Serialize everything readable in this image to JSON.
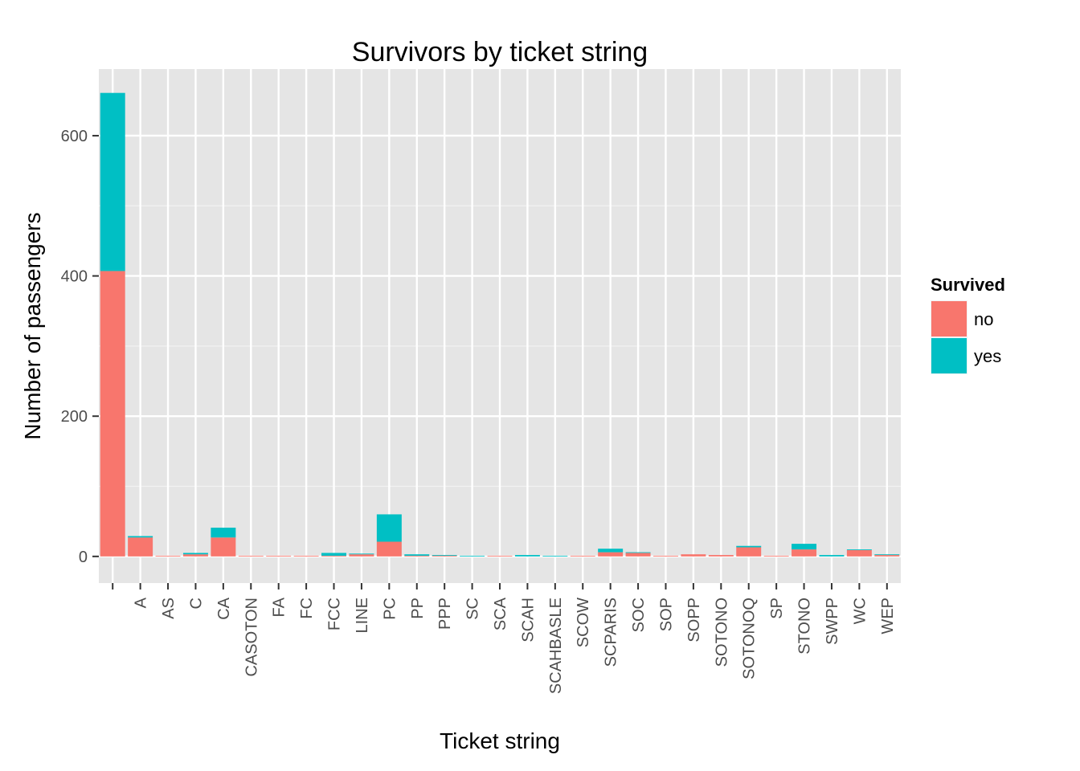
{
  "chart_data": {
    "type": "bar",
    "stacked": true,
    "title": "Survivors by ticket string",
    "xlabel": "Ticket string",
    "ylabel": "Number of passengers",
    "ylim": [
      -38,
      695
    ],
    "yticks": [
      0,
      200,
      400,
      600
    ],
    "grid": true,
    "legend": {
      "title": "Survived",
      "position": "right"
    },
    "categories": [
      "",
      "A",
      "AS",
      "C",
      "CA",
      "CASOTON",
      "FA",
      "FC",
      "FCC",
      "LINE",
      "PC",
      "PP",
      "PPP",
      "SC",
      "SCA",
      "SCAH",
      "SCAHBASLE",
      "SCOW",
      "SCPARIS",
      "SOC",
      "SOP",
      "SOPP",
      "SOTONO",
      "SOTONOQ",
      "SP",
      "STONO",
      "SWPP",
      "WC",
      "WEP"
    ],
    "series": [
      {
        "name": "no",
        "color": "#f8766d",
        "values": [
          407,
          27,
          1,
          3,
          27,
          1,
          1,
          1,
          1,
          3,
          21,
          1,
          1,
          0,
          1,
          0,
          0,
          1,
          6,
          5,
          1,
          3,
          2,
          13,
          1,
          10,
          0,
          9,
          2
        ]
      },
      {
        "name": "yes",
        "color": "#00bfc4",
        "values": [
          254,
          2,
          0,
          2,
          14,
          0,
          0,
          0,
          4,
          1,
          39,
          2,
          1,
          1,
          0,
          2,
          1,
          0,
          5,
          1,
          0,
          0,
          0,
          2,
          0,
          8,
          2,
          1,
          1
        ]
      }
    ]
  }
}
